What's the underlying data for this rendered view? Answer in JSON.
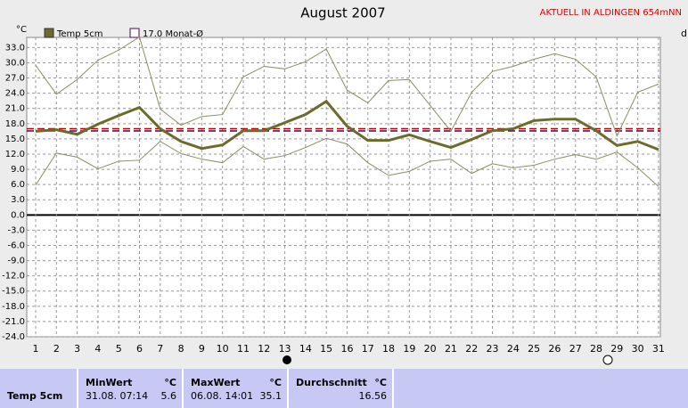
{
  "chart_data": {
    "type": "line",
    "title": "August 2007",
    "subtitle": "AKTUELL IN ALDINGEN 654mNN",
    "y_unit": "°C",
    "x_unit": "d",
    "x": [
      1,
      2,
      3,
      4,
      5,
      6,
      7,
      8,
      9,
      10,
      11,
      12,
      13,
      14,
      15,
      16,
      17,
      18,
      19,
      20,
      21,
      22,
      23,
      24,
      25,
      26,
      27,
      28,
      29,
      30,
      31
    ],
    "xlim": [
      0.57,
      31.09
    ],
    "xticks": [
      1,
      2,
      3,
      4,
      5,
      6,
      7,
      8,
      9,
      10,
      11,
      12,
      13,
      14,
      15,
      16,
      17,
      18,
      19,
      20,
      21,
      22,
      23,
      24,
      25,
      26,
      27,
      28,
      29,
      30,
      31
    ],
    "ylim": [
      -24,
      35
    ],
    "yticks": [
      {
        "value": -24,
        "label": "-24.0"
      },
      {
        "value": -21,
        "label": "-21.0"
      },
      {
        "value": -18,
        "label": "-18.0"
      },
      {
        "value": -15,
        "label": "-15.0"
      },
      {
        "value": -12,
        "label": "-12.0"
      },
      {
        "value": -9,
        "label": "-9.0"
      },
      {
        "value": -6,
        "label": "-6.0"
      },
      {
        "value": -3,
        "label": "-3.0"
      },
      {
        "value": 0,
        "label": "0.0"
      },
      {
        "value": 3,
        "label": "3.0"
      },
      {
        "value": 6,
        "label": "6.0"
      },
      {
        "value": 9,
        "label": "9.0"
      },
      {
        "value": 12,
        "label": "12.0"
      },
      {
        "value": 15,
        "label": "15.0"
      },
      {
        "value": 18,
        "label": "18.0"
      },
      {
        "value": 21,
        "label": "21.0"
      },
      {
        "value": 24,
        "label": "24.0"
      },
      {
        "value": 27,
        "label": "27.0"
      },
      {
        "value": 30,
        "label": "30.0"
      },
      {
        "value": 33,
        "label": "33.0"
      }
    ],
    "grid": true,
    "series": [
      {
        "name": "Temp 5cm",
        "color": "#6b6b2e",
        "width": 3,
        "values": [
          16.5,
          16.8,
          15.9,
          17.9,
          19.6,
          21.2,
          17.0,
          14.5,
          13.1,
          13.8,
          16.6,
          16.6,
          18.2,
          19.8,
          22.4,
          17.5,
          14.7,
          14.7,
          15.8,
          14.5,
          13.3,
          14.9,
          16.6,
          17.0,
          18.6,
          18.9,
          18.9,
          16.6,
          13.7,
          14.5,
          12.9
        ]
      },
      {
        "color": "#8c8c66",
        "width": 1,
        "values": [
          29.5,
          23.8,
          26.7,
          30.5,
          32.5,
          35.1,
          20.9,
          17.7,
          19.4,
          19.8,
          27.2,
          29.3,
          28.8,
          30.2,
          32.7,
          24.6,
          22.1,
          26.5,
          26.7,
          21.6,
          16.5,
          24.2,
          28.3,
          29.3,
          30.7,
          31.8,
          30.7,
          27.2,
          15.6,
          24.2,
          25.8
        ]
      },
      {
        "color": "#8c8c66",
        "width": 1,
        "values": [
          5.9,
          12.2,
          11.4,
          9.1,
          10.6,
          10.8,
          14.5,
          12.1,
          11.0,
          10.3,
          13.5,
          11.0,
          11.7,
          13.3,
          15.1,
          14.0,
          10.3,
          7.8,
          8.6,
          10.6,
          11.0,
          8.2,
          10.1,
          9.3,
          9.8,
          11.0,
          11.9,
          11.0,
          12.4,
          9.3,
          5.6
        ]
      }
    ],
    "reference_lines": [
      {
        "label": "17.0 Monat-Ø",
        "value": 17.0,
        "color": "#c00000"
      },
      {
        "value": 16.56,
        "color": "#500050"
      }
    ]
  },
  "stats": {
    "row_label": "Temp 5cm",
    "min": {
      "label": "MinWert",
      "unit": "°C",
      "time": "31.08.  07:14",
      "value": "5.6"
    },
    "max": {
      "label": "MaxWert",
      "unit": "°C",
      "time": "06.08.  14:01",
      "value": "35.1"
    },
    "avg": {
      "label": "Durchschnitt",
      "unit": "°C",
      "value": "16.56"
    }
  }
}
